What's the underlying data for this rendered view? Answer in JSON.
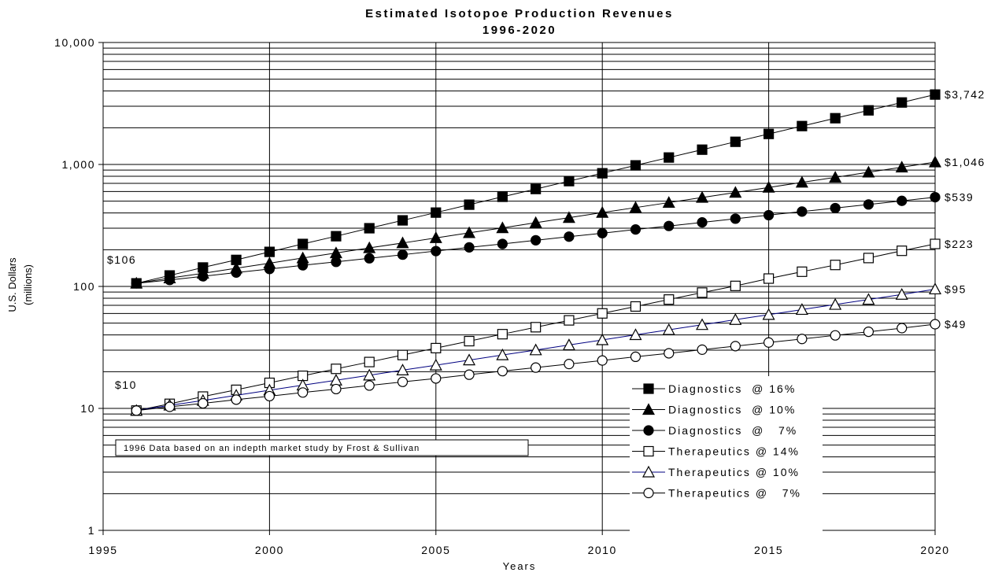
{
  "chart_data": {
    "type": "line",
    "title": "Estimated Isotopoe Production Revenues",
    "subtitle": "1996-2020",
    "xlabel": "Years",
    "ylabel": "U.S. Dollars",
    "ylabel2": "(millions)",
    "y_scale": "log",
    "ylim": [
      1,
      10000
    ],
    "xlim": [
      1995,
      2020
    ],
    "x_ticks": [
      1995,
      2000,
      2005,
      2010,
      2015,
      2020
    ],
    "x_tick_labels": [
      "1995",
      "2000",
      "2005",
      "2010",
      "2015",
      "2020"
    ],
    "y_ticks": [
      1,
      10,
      100,
      1000,
      10000
    ],
    "y_tick_labels": [
      "1",
      "10",
      "100",
      "1,000",
      "10,000"
    ],
    "grid": true,
    "legend_position": "bottom-right",
    "x": [
      1996,
      1997,
      1998,
      1999,
      2000,
      2001,
      2002,
      2003,
      2004,
      2005,
      2006,
      2007,
      2008,
      2009,
      2010,
      2011,
      2012,
      2013,
      2014,
      2015,
      2016,
      2017,
      2018,
      2019,
      2020
    ],
    "series": [
      {
        "name": "Diagnostics  @ 16%",
        "marker": "square-filled",
        "color": "#000000",
        "start": 106,
        "rate": 0.16,
        "values": [
          106,
          123,
          143,
          165,
          192,
          223,
          258,
          300,
          348,
          403,
          468,
          543,
          629,
          730,
          847,
          983,
          1140,
          1322,
          1534,
          1779,
          2064,
          2394,
          2777,
          3222,
          3742
        ]
      },
      {
        "name": "Diagnostics  @ 10%",
        "marker": "triangle-filled",
        "color": "#000000",
        "start": 106,
        "rate": 0.1,
        "values": [
          106,
          117,
          128,
          141,
          155,
          171,
          188,
          207,
          227,
          250,
          275,
          302,
          333,
          366,
          403,
          443,
          487,
          536,
          589,
          648,
          713,
          784,
          863,
          949,
          1046
        ]
      },
      {
        "name": "Diagnostics  @   7%",
        "marker": "circle-filled",
        "color": "#000000",
        "start": 106,
        "rate": 0.07,
        "values": [
          106,
          113,
          121,
          130,
          139,
          149,
          159,
          170,
          182,
          195,
          209,
          223,
          239,
          256,
          273,
          293,
          313,
          335,
          359,
          384,
          411,
          439,
          470,
          503,
          539
        ]
      },
      {
        "name": "Therapeutics @ 14%",
        "marker": "square-open",
        "color": "#000000",
        "start": 9.6,
        "rate": 0.14,
        "values": [
          9.6,
          10.9,
          12.5,
          14.2,
          16.2,
          18.5,
          21.1,
          24.0,
          27.4,
          31.2,
          35.6,
          40.6,
          46.3,
          52.7,
          60.1,
          68.5,
          78.1,
          89.0,
          101,
          116,
          132,
          150,
          171,
          196,
          223
        ]
      },
      {
        "name": "Therapeutics @ 10%",
        "marker": "triangle-open",
        "color": "#000080",
        "start": 9.6,
        "rate": 0.1,
        "values": [
          9.6,
          10.6,
          11.6,
          12.8,
          14.1,
          15.5,
          17.0,
          18.7,
          20.6,
          22.6,
          24.9,
          27.4,
          30.1,
          33.1,
          36.4,
          40.1,
          44.1,
          48.5,
          53.4,
          58.7,
          64.6,
          71.0,
          78.1,
          85.9,
          95
        ]
      },
      {
        "name": "Therapeutics @   7%",
        "marker": "circle-open",
        "color": "#000000",
        "start": 9.6,
        "rate": 0.07,
        "values": [
          9.6,
          10.3,
          11.0,
          11.8,
          12.6,
          13.5,
          14.4,
          15.4,
          16.5,
          17.6,
          18.9,
          20.2,
          21.6,
          23.1,
          24.7,
          26.5,
          28.3,
          30.3,
          32.4,
          34.7,
          37.1,
          39.7,
          42.5,
          45.5,
          49
        ]
      }
    ],
    "end_labels": [
      "$3,742",
      "$1,046",
      "$539",
      "$223",
      "$95",
      "$49"
    ],
    "start_labels": [
      "$106",
      "$10"
    ],
    "annotation": "1996 Data based on an indepth market study by Frost & Sullivan"
  }
}
